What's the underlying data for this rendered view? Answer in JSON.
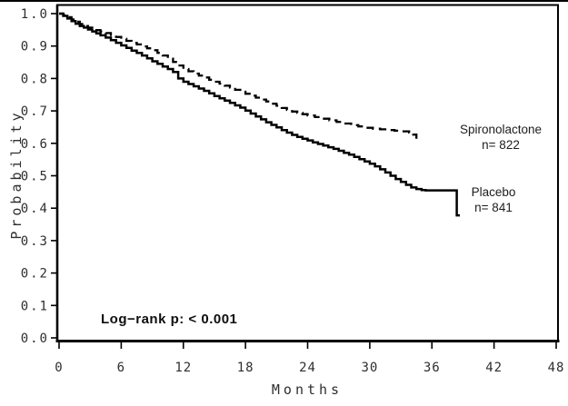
{
  "chart_data": {
    "type": "line",
    "subtype": "kaplan-meier-step-curves",
    "title": "",
    "xlabel": "Months",
    "ylabel": "Probability",
    "xlim": [
      0,
      48
    ],
    "ylim": [
      0.0,
      1.0
    ],
    "grid": false,
    "x_tick_values": [
      0,
      6,
      12,
      18,
      24,
      30,
      36,
      42,
      48
    ],
    "x_tick_labels": [
      "0",
      "6",
      "12",
      "18",
      "24",
      "30",
      "36",
      "42",
      "48"
    ],
    "y_tick_values": [
      1.0,
      0.9,
      0.8,
      0.7,
      0.6,
      0.5,
      0.4,
      0.3,
      0.2,
      0.1,
      0.0
    ],
    "y_tick_labels": [
      "1.0",
      "0.9",
      "0.8",
      "0.7",
      "0.6",
      "0.5",
      "0.4",
      "0.3",
      "0.2",
      "0.1",
      "0.0"
    ],
    "annotation": "Log−rank p:  < 0.001",
    "legend_position": "right-of-curve-ends",
    "series": [
      {
        "name": "Spironolactone",
        "n_label": "n= 822",
        "style": "dashed",
        "color": "#000000",
        "points": [
          [
            0,
            1.0
          ],
          [
            0.4,
            0.995
          ],
          [
            0.8,
            0.989
          ],
          [
            1.2,
            0.982
          ],
          [
            1.6,
            0.975
          ],
          [
            2,
            0.968
          ],
          [
            2.4,
            0.962
          ],
          [
            2.8,
            0.957
          ],
          [
            3.2,
            0.953
          ],
          [
            3.6,
            0.949
          ],
          [
            4,
            0.945
          ],
          [
            4.5,
            0.94
          ],
          [
            5,
            0.934
          ],
          [
            5.5,
            0.928
          ],
          [
            6,
            0.922
          ],
          [
            6.5,
            0.916
          ],
          [
            7,
            0.91
          ],
          [
            7.5,
            0.905
          ],
          [
            8,
            0.899
          ],
          [
            8.5,
            0.893
          ],
          [
            9,
            0.887
          ],
          [
            9.5,
            0.879
          ],
          [
            10,
            0.871
          ],
          [
            10.5,
            0.861
          ],
          [
            11,
            0.851
          ],
          [
            11.5,
            0.84
          ],
          [
            12,
            0.829
          ],
          [
            12.5,
            0.822
          ],
          [
            13,
            0.815
          ],
          [
            13.5,
            0.809
          ],
          [
            14,
            0.803
          ],
          [
            14.5,
            0.796
          ],
          [
            15,
            0.79
          ],
          [
            15.5,
            0.784
          ],
          [
            16,
            0.778
          ],
          [
            16.5,
            0.772
          ],
          [
            17,
            0.765
          ],
          [
            17.5,
            0.759
          ],
          [
            18,
            0.753
          ],
          [
            18.5,
            0.747
          ],
          [
            19,
            0.741
          ],
          [
            19.5,
            0.735
          ],
          [
            20,
            0.729
          ],
          [
            20.5,
            0.722
          ],
          [
            21,
            0.716
          ],
          [
            21.5,
            0.709
          ],
          [
            22,
            0.703
          ],
          [
            22.5,
            0.698
          ],
          [
            23,
            0.694
          ],
          [
            23.5,
            0.69
          ],
          [
            24,
            0.686
          ],
          [
            24.7,
            0.681
          ],
          [
            25.4,
            0.676
          ],
          [
            26.1,
            0.671
          ],
          [
            26.8,
            0.666
          ],
          [
            27.5,
            0.661
          ],
          [
            28.2,
            0.656
          ],
          [
            28.9,
            0.652
          ],
          [
            29.6,
            0.648
          ],
          [
            30.3,
            0.645
          ],
          [
            31,
            0.643
          ],
          [
            31.7,
            0.641
          ],
          [
            32.4,
            0.639
          ],
          [
            33.1,
            0.637
          ],
          [
            33.8,
            0.633
          ],
          [
            34.2,
            0.627
          ],
          [
            34.5,
            0.611
          ]
        ]
      },
      {
        "name": "Placebo",
        "n_label": "n= 841",
        "style": "solid",
        "color": "#000000",
        "points": [
          [
            0,
            1.0
          ],
          [
            0.4,
            0.993
          ],
          [
            0.8,
            0.985
          ],
          [
            1.2,
            0.977
          ],
          [
            1.6,
            0.969
          ],
          [
            2,
            0.962
          ],
          [
            2.4,
            0.957
          ],
          [
            2.8,
            0.951
          ],
          [
            3.2,
            0.945
          ],
          [
            3.6,
            0.939
          ],
          [
            4,
            0.933
          ],
          [
            4.5,
            0.926
          ],
          [
            5,
            0.918
          ],
          [
            5.5,
            0.91
          ],
          [
            6,
            0.902
          ],
          [
            6.5,
            0.894
          ],
          [
            7,
            0.886
          ],
          [
            7.5,
            0.879
          ],
          [
            8,
            0.871
          ],
          [
            8.5,
            0.862
          ],
          [
            9,
            0.853
          ],
          [
            9.5,
            0.845
          ],
          [
            10,
            0.837
          ],
          [
            10.5,
            0.829
          ],
          [
            11,
            0.82
          ],
          [
            11.5,
            0.8
          ],
          [
            12,
            0.79
          ],
          [
            12.5,
            0.783
          ],
          [
            13,
            0.776
          ],
          [
            13.5,
            0.769
          ],
          [
            14,
            0.762
          ],
          [
            14.5,
            0.754
          ],
          [
            15,
            0.746
          ],
          [
            15.5,
            0.739
          ],
          [
            16,
            0.732
          ],
          [
            16.5,
            0.725
          ],
          [
            17,
            0.717
          ],
          [
            17.5,
            0.71
          ],
          [
            18,
            0.701
          ],
          [
            18.5,
            0.692
          ],
          [
            19,
            0.683
          ],
          [
            19.5,
            0.674
          ],
          [
            20,
            0.665
          ],
          [
            20.5,
            0.657
          ],
          [
            21,
            0.649
          ],
          [
            21.5,
            0.641
          ],
          [
            22,
            0.633
          ],
          [
            22.5,
            0.626
          ],
          [
            23,
            0.62
          ],
          [
            23.5,
            0.614
          ],
          [
            24,
            0.609
          ],
          [
            24.5,
            0.603
          ],
          [
            25,
            0.598
          ],
          [
            25.5,
            0.593
          ],
          [
            26,
            0.588
          ],
          [
            26.5,
            0.583
          ],
          [
            27,
            0.577
          ],
          [
            27.5,
            0.571
          ],
          [
            28,
            0.565
          ],
          [
            28.5,
            0.558
          ],
          [
            29,
            0.551
          ],
          [
            29.5,
            0.544
          ],
          [
            30,
            0.537
          ],
          [
            30.5,
            0.529
          ],
          [
            31,
            0.52
          ],
          [
            31.5,
            0.51
          ],
          [
            32,
            0.5
          ],
          [
            32.5,
            0.49
          ],
          [
            33,
            0.481
          ],
          [
            33.5,
            0.472
          ],
          [
            34,
            0.464
          ],
          [
            34.5,
            0.459
          ],
          [
            35,
            0.456
          ],
          [
            35.4,
            0.455
          ],
          [
            38.4,
            0.455
          ],
          [
            38.4,
            0.378
          ],
          [
            38.7,
            0.378
          ]
        ]
      }
    ]
  },
  "colors": {
    "curve": "#000000",
    "axis": "#000000",
    "text": "#2e2e2e",
    "background": "#ffffff"
  }
}
